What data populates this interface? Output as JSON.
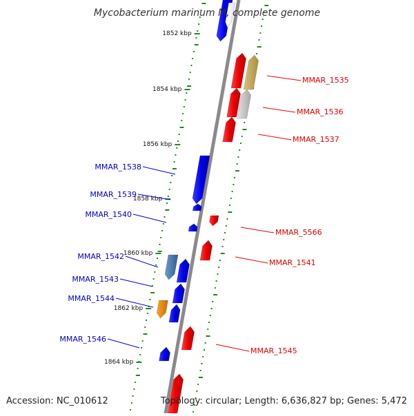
{
  "title": "Mycobacterium marinum M, complete genome",
  "accession": "Accession: NC_010612",
  "summary": "Topology: circular; Length: 6,636,827 bp; Genes: 5,472",
  "colors": {
    "forward_gene": "#0000ee",
    "reverse_gene": "#ee0000",
    "forward_label": "#0000cc",
    "reverse_label": "#dd0000",
    "tick_dot": "#1a8a1a",
    "axis": "#8a8a8a",
    "steel_gene": "#4a7eb0",
    "orange_gene": "#ee8a00",
    "olive_gene": "#c8b060",
    "grey_gene": "#c8c8c8"
  },
  "scale_ticks": [
    {
      "label": "1852 kbp"
    },
    {
      "label": "1854 kbp"
    },
    {
      "label": "1856 kbp"
    },
    {
      "label": "1858 kbp"
    },
    {
      "label": "1860 kbp"
    },
    {
      "label": "1862 kbp"
    },
    {
      "label": "1864 kbp"
    }
  ],
  "forward_genes": [
    {
      "label": "MMAR_1538"
    },
    {
      "label": "MMAR_1539"
    },
    {
      "label": "MMAR_1540"
    },
    {
      "label": "MMAR_1542"
    },
    {
      "label": "MMAR_1543"
    },
    {
      "label": "MMAR_1544"
    },
    {
      "label": "MMAR_1546"
    }
  ],
  "reverse_genes": [
    {
      "label": "MMAR_1535"
    },
    {
      "label": "MMAR_1536"
    },
    {
      "label": "MMAR_1537"
    },
    {
      "label": "MMAR_5566"
    },
    {
      "label": "MMAR_1541"
    },
    {
      "label": "MMAR_1545"
    }
  ]
}
